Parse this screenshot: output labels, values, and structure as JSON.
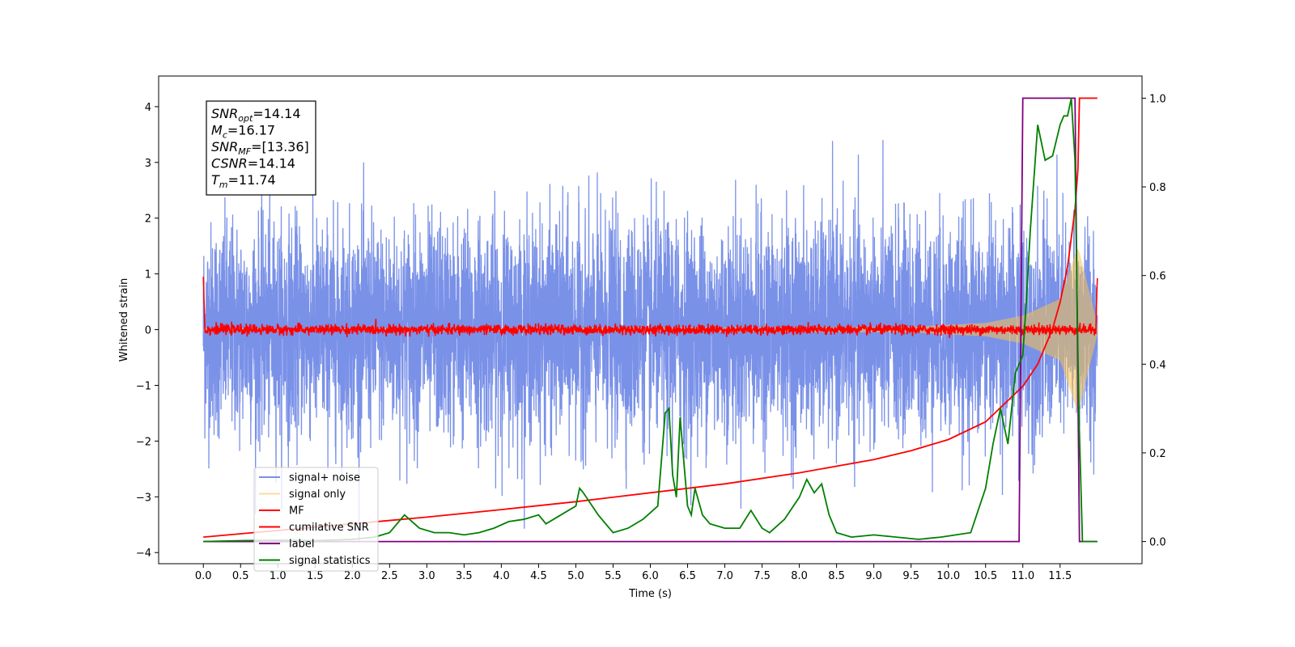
{
  "chart_data": {
    "type": "line",
    "xlabel": "Time (s)",
    "ylabel": "Whitened strain",
    "xlim": [
      -0.6,
      12.6
    ],
    "ylim": [
      -4.2,
      4.55
    ],
    "y2lim": [
      -0.05,
      1.05
    ],
    "x_ticks": [
      "0.0",
      "0.5",
      "1.0",
      "1.5",
      "2.0",
      "2.5",
      "3.0",
      "3.5",
      "4.0",
      "4.5",
      "5.0",
      "5.5",
      "6.0",
      "6.5",
      "7.0",
      "7.5",
      "8.0",
      "8.5",
      "9.0",
      "9.5",
      "10.0",
      "10.5",
      "11.0",
      "11.5"
    ],
    "y_ticks": [
      "−4",
      "−3",
      "−2",
      "−1",
      "0",
      "1",
      "2",
      "3",
      "4"
    ],
    "y2_ticks": [
      "0.0",
      "0.2",
      "0.4",
      "0.6",
      "0.8",
      "1.0"
    ],
    "grid": false,
    "legend_position": "lower-left",
    "annotation": {
      "lines": [
        {
          "sym": "SNR",
          "sub": "opt",
          "val": "=14.14"
        },
        {
          "sym": "M",
          "sub": "c",
          "val": "=16.17"
        },
        {
          "sym": "SNR",
          "sub": "MF",
          "val": "=[13.36]"
        },
        {
          "sym": "CSNR",
          "sub": "",
          "val": "=14.14"
        },
        {
          "sym": "T",
          "sub": "m",
          "val": "=11.74"
        }
      ]
    },
    "series": [
      {
        "name": "signal+ noise",
        "color": "#6b85e6",
        "axis": "left",
        "amplitude_sd": 1.0,
        "x_range": [
          0,
          12.0
        ]
      },
      {
        "name": "signal only",
        "color": "#f7c24e",
        "axis": "left",
        "chirp_envelope": {
          "x": [
            0,
            9.5,
            10.5,
            11.0,
            11.5,
            11.74,
            12.0
          ],
          "y": [
            0.02,
            0.05,
            0.12,
            0.25,
            0.55,
            1.5,
            0.1
          ]
        }
      },
      {
        "name": "MF",
        "color": "#ff0000",
        "axis": "left",
        "x": [
          0,
          0.02,
          11.98,
          12.0
        ],
        "y": [
          1.0,
          0.0,
          0.0,
          0.95
        ]
      },
      {
        "name": "cumilative SNR",
        "color": "#ff0000",
        "axis": "right",
        "x": [
          0,
          1,
          2,
          3,
          4,
          5,
          6,
          7,
          8,
          9,
          9.5,
          10,
          10.5,
          11.0,
          11.2,
          11.4,
          11.5,
          11.6,
          11.7,
          11.74,
          11.76,
          12.0
        ],
        "y": [
          0.01,
          0.025,
          0.04,
          0.055,
          0.072,
          0.09,
          0.11,
          0.13,
          0.155,
          0.185,
          0.205,
          0.23,
          0.27,
          0.35,
          0.4,
          0.48,
          0.54,
          0.62,
          0.75,
          0.84,
          1.0,
          1.0
        ]
      },
      {
        "name": "label",
        "color": "#800080",
        "axis": "right",
        "x": [
          0,
          10.95,
          11.0,
          11.7,
          11.76,
          12.0
        ],
        "y": [
          0,
          0,
          1,
          1,
          0,
          0
        ]
      },
      {
        "name": "signal statistics",
        "color": "#008000",
        "axis": "right",
        "x": [
          0,
          0.5,
          1.0,
          1.5,
          2.0,
          2.3,
          2.5,
          2.7,
          2.9,
          3.1,
          3.3,
          3.5,
          3.7,
          3.9,
          4.1,
          4.3,
          4.5,
          4.6,
          4.8,
          5.0,
          5.05,
          5.1,
          5.3,
          5.5,
          5.7,
          5.9,
          6.1,
          6.2,
          6.25,
          6.3,
          6.35,
          6.4,
          6.45,
          6.5,
          6.55,
          6.6,
          6.7,
          6.8,
          7.0,
          7.2,
          7.35,
          7.5,
          7.6,
          7.8,
          8.0,
          8.1,
          8.2,
          8.3,
          8.4,
          8.5,
          8.7,
          9.0,
          9.3,
          9.6,
          9.9,
          10.1,
          10.3,
          10.5,
          10.6,
          10.7,
          10.8,
          10.9,
          11.0,
          11.05,
          11.1,
          11.2,
          11.3,
          11.4,
          11.5,
          11.55,
          11.6,
          11.65,
          11.7,
          11.75,
          11.8,
          11.85,
          12.0
        ],
        "y": [
          0.0,
          0.002,
          0.003,
          0.002,
          0.005,
          0.01,
          0.02,
          0.06,
          0.03,
          0.02,
          0.02,
          0.015,
          0.02,
          0.03,
          0.045,
          0.05,
          0.06,
          0.04,
          0.06,
          0.08,
          0.12,
          0.11,
          0.06,
          0.02,
          0.03,
          0.05,
          0.08,
          0.29,
          0.3,
          0.15,
          0.1,
          0.28,
          0.18,
          0.08,
          0.06,
          0.12,
          0.06,
          0.04,
          0.03,
          0.03,
          0.07,
          0.03,
          0.02,
          0.05,
          0.1,
          0.14,
          0.11,
          0.13,
          0.06,
          0.02,
          0.01,
          0.015,
          0.01,
          0.005,
          0.01,
          0.015,
          0.02,
          0.12,
          0.22,
          0.3,
          0.22,
          0.38,
          0.42,
          0.55,
          0.7,
          0.94,
          0.86,
          0.87,
          0.94,
          0.96,
          0.96,
          1.0,
          0.86,
          0.3,
          0.0,
          0.0,
          0.0
        ]
      }
    ]
  }
}
